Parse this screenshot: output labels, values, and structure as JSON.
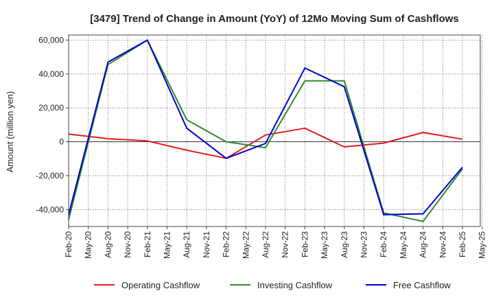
{
  "chart_data": {
    "type": "line",
    "title": "[3479]  Trend of Change in Amount (YoY) of 12Mo Moving Sum of Cashflows",
    "xlabel": "",
    "ylabel": "Amount (million yen)",
    "ylim": [
      -50000,
      63000
    ],
    "yticks": [
      -40000,
      -20000,
      0,
      20000,
      40000,
      60000
    ],
    "ytick_labels": [
      "-40,000",
      "-20,000",
      "0",
      "20,000",
      "40,000",
      "60,000"
    ],
    "x_categories": [
      "Feb-20",
      "May-20",
      "Aug-20",
      "Nov-20",
      "Feb-21",
      "May-21",
      "Aug-21",
      "Nov-21",
      "Feb-22",
      "May-22",
      "Aug-22",
      "Nov-22",
      "Feb-23",
      "May-23",
      "Aug-23",
      "Nov-23",
      "Feb-24",
      "May-24",
      "Aug-24",
      "Nov-24",
      "Feb-25",
      "May-25"
    ],
    "x_index": [
      0,
      1,
      2,
      3,
      4,
      5,
      6,
      7,
      8,
      9,
      10,
      11,
      12,
      13,
      14,
      15,
      16,
      17,
      18,
      19,
      20,
      21
    ],
    "grid": true,
    "legend_position": "bottom",
    "series": [
      {
        "name": "Operating Cashflow",
        "color": "#e31a1c",
        "x": [
          0,
          2,
          4,
          6,
          8,
          10,
          12,
          14,
          16,
          18,
          20
        ],
        "values": [
          4500,
          1800,
          500,
          -5000,
          -9800,
          4000,
          8000,
          -3000,
          -800,
          5500,
          1500
        ]
      },
      {
        "name": "Investing Cashflow",
        "color": "#2e8b2e",
        "x": [
          0,
          2,
          4,
          6,
          8,
          10,
          12,
          14,
          16,
          18,
          20
        ],
        "values": [
          -46000,
          45500,
          60000,
          13000,
          0,
          -3500,
          36000,
          36000,
          -42000,
          -47000,
          -16000
        ]
      },
      {
        "name": "Free Cashflow",
        "color": "#0000cc",
        "x": [
          0,
          2,
          4,
          6,
          8,
          10,
          12,
          14,
          16,
          18,
          20
        ],
        "values": [
          -43000,
          47000,
          60000,
          8000,
          -9800,
          -1000,
          43500,
          32500,
          -43000,
          -42500,
          -15000
        ]
      }
    ]
  }
}
